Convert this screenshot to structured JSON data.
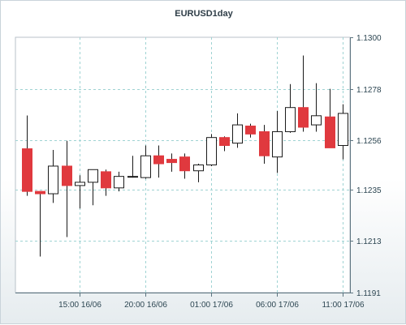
{
  "chart_data": {
    "type": "candlestick",
    "title": "EURUSD1day",
    "ylim": [
      1.1191,
      1.13
    ],
    "y_ticks": [
      "1.1300",
      "1.1278",
      "1.1256",
      "1.1235",
      "1.1213",
      "1.1191"
    ],
    "x_ticks": [
      {
        "index": 4,
        "label": "15:00 16/06"
      },
      {
        "index": 9,
        "label": "20:00 16/06"
      },
      {
        "index": 14,
        "label": "01:00 17/06"
      },
      {
        "index": 19,
        "label": "06:00 17/06"
      },
      {
        "index": 24,
        "label": "11:00 17/06"
      }
    ],
    "grid": true,
    "colors": {
      "bullish": "#ffffff",
      "bearish": "#e0393e",
      "outline": "#1a1a1a",
      "grid": "#9fd3d3"
    },
    "candles": [
      {
        "o": 1.12524,
        "h": 1.12666,
        "l": 1.12323,
        "c": 1.12342
      },
      {
        "o": 1.12342,
        "h": 1.12342,
        "l": 1.12064,
        "c": 1.12332
      },
      {
        "o": 1.12332,
        "h": 1.12519,
        "l": 1.12293,
        "c": 1.1245
      },
      {
        "o": 1.1245,
        "h": 1.12558,
        "l": 1.12147,
        "c": 1.12367
      },
      {
        "o": 1.12367,
        "h": 1.12411,
        "l": 1.12269,
        "c": 1.12381
      },
      {
        "o": 1.12381,
        "h": 1.12435,
        "l": 1.12283,
        "c": 1.12435
      },
      {
        "o": 1.12426,
        "h": 1.12435,
        "l": 1.12323,
        "c": 1.12357
      },
      {
        "o": 1.12357,
        "h": 1.12426,
        "l": 1.12342,
        "c": 1.12406
      },
      {
        "o": 1.12406,
        "h": 1.12494,
        "l": 1.12401,
        "c": 1.12406
      },
      {
        "o": 1.12401,
        "h": 1.12538,
        "l": 1.12396,
        "c": 1.12494
      },
      {
        "o": 1.12494,
        "h": 1.12538,
        "l": 1.12401,
        "c": 1.1246
      },
      {
        "o": 1.12479,
        "h": 1.12504,
        "l": 1.12426,
        "c": 1.12465
      },
      {
        "o": 1.12489,
        "h": 1.12504,
        "l": 1.12396,
        "c": 1.1243
      },
      {
        "o": 1.1243,
        "h": 1.1246,
        "l": 1.12381,
        "c": 1.12455
      },
      {
        "o": 1.12455,
        "h": 1.12587,
        "l": 1.1245,
        "c": 1.12572
      },
      {
        "o": 1.12572,
        "h": 1.12577,
        "l": 1.12514,
        "c": 1.12538
      },
      {
        "o": 1.12548,
        "h": 1.12675,
        "l": 1.12528,
        "c": 1.12626
      },
      {
        "o": 1.12621,
        "h": 1.12631,
        "l": 1.12572,
        "c": 1.12587
      },
      {
        "o": 1.12597,
        "h": 1.12626,
        "l": 1.1246,
        "c": 1.12494
      },
      {
        "o": 1.12489,
        "h": 1.12685,
        "l": 1.12421,
        "c": 1.12597
      },
      {
        "o": 1.12597,
        "h": 1.128,
        "l": 1.12592,
        "c": 1.127
      },
      {
        "o": 1.127,
        "h": 1.12922,
        "l": 1.12597,
        "c": 1.12616
      },
      {
        "o": 1.12626,
        "h": 1.12804,
        "l": 1.12597,
        "c": 1.12665
      },
      {
        "o": 1.1266,
        "h": 1.1278,
        "l": 1.12528,
        "c": 1.12528
      },
      {
        "o": 1.12538,
        "h": 1.12714,
        "l": 1.12479,
        "c": 1.12675
      }
    ]
  }
}
